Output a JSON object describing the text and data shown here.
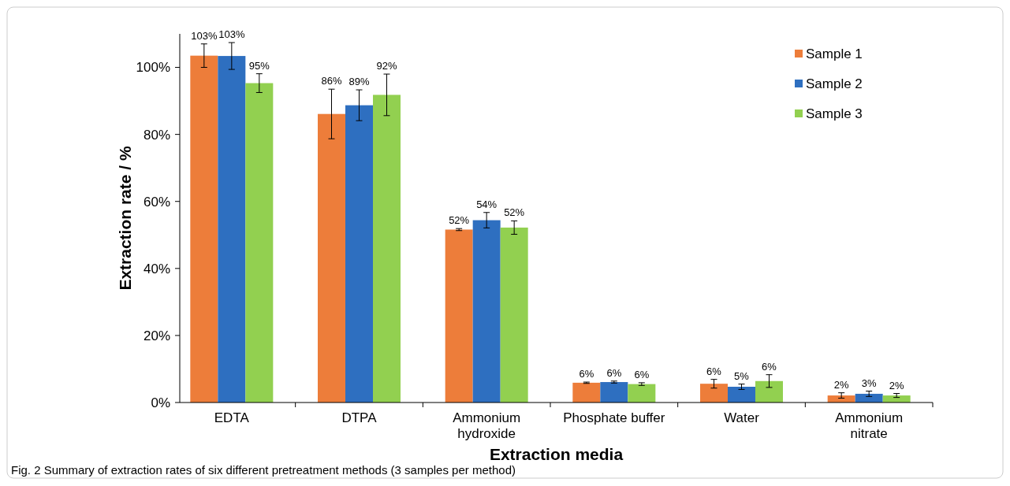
{
  "chart_data": {
    "type": "bar",
    "xlabel": "Extraction media",
    "ylabel": "Extraction rate / %",
    "categories": [
      "EDTA",
      "DTPA",
      "Ammonium hydroxide",
      "Phosphate buffer",
      "Water",
      "Ammonium nitrate"
    ],
    "series": [
      {
        "name": "Sample 1",
        "color": "#ed7d3a",
        "values": [
          103.5,
          86.1,
          51.6,
          5.9,
          5.6,
          2.1
        ],
        "errors": [
          3.5,
          7.4,
          0.3,
          0.2,
          1.3,
          0.8
        ],
        "value_labels": [
          "103%",
          "86%",
          "52%",
          "6%",
          "6%",
          "2%"
        ]
      },
      {
        "name": "Sample 2",
        "color": "#2e6fc0",
        "values": [
          103.4,
          88.7,
          54.4,
          6.1,
          4.7,
          2.6
        ],
        "errors": [
          4,
          4.6,
          2.3,
          0.3,
          0.8,
          0.8
        ],
        "value_labels": [
          "103%",
          "89%",
          "54%",
          "6%",
          "5%",
          "3%"
        ]
      },
      {
        "name": "Sample 3",
        "color": "#92d050",
        "values": [
          95.3,
          91.8,
          52.2,
          5.5,
          6.4,
          2.1
        ],
        "errors": [
          2.8,
          6.2,
          2,
          0.4,
          1.9,
          0.6
        ],
        "value_labels": [
          "95%",
          "92%",
          "52%",
          "6%",
          "6%",
          "2%"
        ]
      }
    ],
    "ylim": [
      0,
      110
    ],
    "yticks": [
      {
        "value": 0,
        "label": "0%"
      },
      {
        "value": 20,
        "label": "20%"
      },
      {
        "value": 40,
        "label": "40%"
      },
      {
        "value": 60,
        "label": "60%"
      },
      {
        "value": 80,
        "label": "80%"
      },
      {
        "value": 100,
        "label": "100%"
      }
    ],
    "legend": "top right",
    "annotations": [
      "Fig. 2  Summary of extraction rates of six different pretreatment methods (3 samples per method)"
    ]
  }
}
